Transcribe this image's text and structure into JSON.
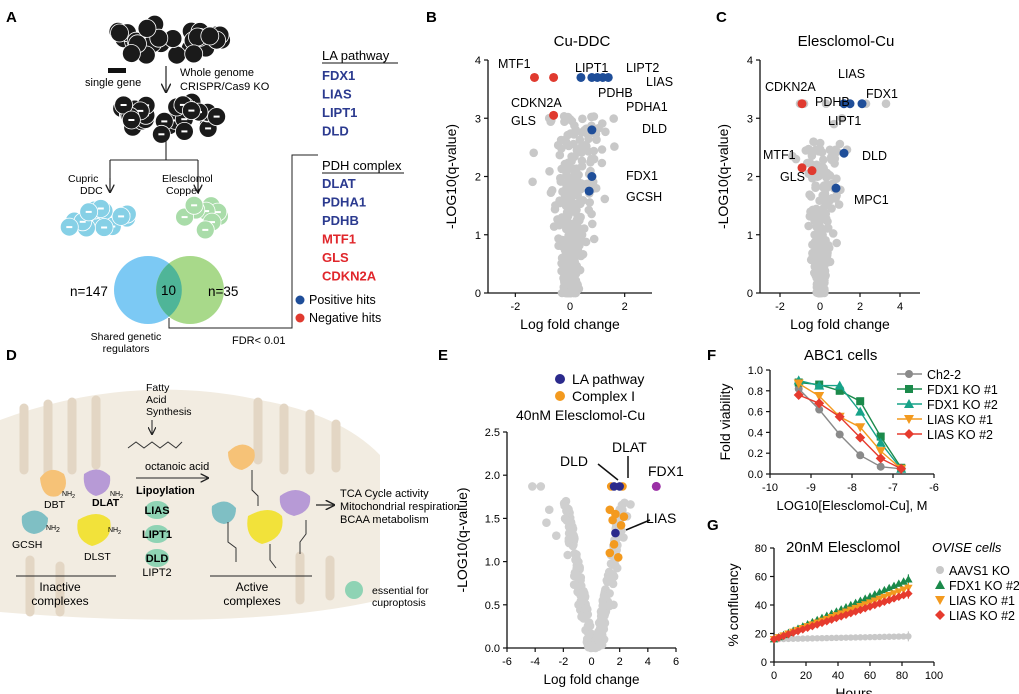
{
  "panels": {
    "A": "A",
    "B": "B",
    "C": "C",
    "D": "D",
    "E": "E",
    "F": "F",
    "G": "G"
  },
  "panelA": {
    "single_gene": "single gene",
    "screen": [
      "Whole genome",
      "CRISPR/Cas9 KO"
    ],
    "cupric": [
      "Cupric",
      "DDC"
    ],
    "elesclomol": [
      "Elesclomol",
      "Copper"
    ],
    "n_left": "n=147",
    "n_shared": "10",
    "n_right": "n=35",
    "shared": [
      "Shared genetic",
      "regulators"
    ],
    "fdr": "FDR< 0.01",
    "la_header": "LA pathway",
    "la_genes": [
      "FDX1",
      "LIAS",
      "LIPT1",
      "DLD"
    ],
    "pdh_header": "PDH complex",
    "pdh_pos": [
      "DLAT",
      "PDHA1",
      "PDHB"
    ],
    "pdh_neg": [
      "MTF1",
      "GLS",
      "CDKN2A"
    ],
    "legend_pos": "Positive hits",
    "legend_neg": "Negative hits",
    "colors": {
      "positive": "#1f4e99",
      "negative": "#e03a2f",
      "gene_blue": "#2b3a8f",
      "gene_red": "#e0262b"
    }
  },
  "panelD": {
    "fatty": [
      "Fatty",
      "Acid",
      "Synthesis"
    ],
    "octanoic": "octanoic acid",
    "lipoylation": "Lipoylation",
    "enzymes": [
      "LIAS",
      "LIPT1",
      "DLD",
      "LIPT2"
    ],
    "proteins": [
      "DBT",
      "DLAT",
      "GCSH",
      "DLST"
    ],
    "nh2": "NH",
    "nh2_sub": "2",
    "outcomes": [
      "TCA Cycle activity",
      "Mitochondrial respiration",
      "BCAA metabolism"
    ],
    "inactive": [
      "Inactive",
      "complexes"
    ],
    "active": [
      "Active",
      "complexes"
    ],
    "essential": [
      "essential for",
      "cuproptosis"
    ]
  },
  "chart_data": [
    {
      "id": "B",
      "type": "scatter",
      "title": "Cu-DDC",
      "xlabel": "Log fold change",
      "ylabel": "-LOG10(q-value)",
      "xlim": [
        -3,
        3
      ],
      "ylim": [
        0,
        4
      ],
      "xticks": [
        -2,
        0,
        2
      ],
      "yticks": [
        0,
        1,
        2,
        3,
        4
      ],
      "positive_hits": [
        {
          "label": "LIPT1",
          "x": 0.4,
          "y": 3.7
        },
        {
          "label": "LIPT2",
          "x": 1.2,
          "y": 3.7
        },
        {
          "label": "LIAS",
          "x": 1.4,
          "y": 3.7
        },
        {
          "label": "PDHB",
          "x": 0.8,
          "y": 3.7
        },
        {
          "label": "PDHA1",
          "x": 1.0,
          "y": 3.7
        },
        {
          "label": "DLD",
          "x": 0.8,
          "y": 2.8
        },
        {
          "label": "FDX1",
          "x": 0.8,
          "y": 2.0
        },
        {
          "label": "GCSH",
          "x": 0.7,
          "y": 1.75
        }
      ],
      "negative_hits": [
        {
          "label": "MTF1",
          "x": -1.3,
          "y": 3.7
        },
        {
          "label": "CDKN2A",
          "x": -0.6,
          "y": 3.7
        },
        {
          "label": "GLS",
          "x": -0.6,
          "y": 3.05
        }
      ]
    },
    {
      "id": "C",
      "type": "scatter",
      "title": "Elesclomol-Cu",
      "xlabel": "Log fold change",
      "ylabel": "-LOG10(q-value)",
      "xlim": [
        -3,
        5
      ],
      "ylim": [
        0,
        4
      ],
      "xticks": [
        -2,
        0,
        2,
        4
      ],
      "yticks": [
        0,
        1,
        2,
        3,
        4
      ],
      "positive_hits": [
        {
          "label": "PDHB",
          "x": 1.2,
          "y": 3.25
        },
        {
          "label": "LIAS",
          "x": 1.5,
          "y": 3.25
        },
        {
          "label": "FDX1",
          "x": 2.1,
          "y": 3.25
        },
        {
          "label": "DLD",
          "x": 1.2,
          "y": 2.4
        },
        {
          "label": "MPC1",
          "x": 0.8,
          "y": 1.8
        }
      ],
      "negative_hits": [
        {
          "label": "CDKN2A",
          "x": -0.9,
          "y": 3.25
        },
        {
          "label": "MTF1",
          "x": -0.9,
          "y": 2.15
        },
        {
          "label": "GLS",
          "x": -0.4,
          "y": 2.1
        }
      ],
      "other_labels": [
        {
          "label": "LIPT1",
          "x": 1.1,
          "y": 3.0
        }
      ]
    },
    {
      "id": "E",
      "type": "scatter",
      "title": "40nM Elesclomol-Cu",
      "xlabel": "Log fold change",
      "ylabel": "-LOG10(q-value)",
      "xlim": [
        -6,
        6
      ],
      "ylim": [
        0,
        2.5
      ],
      "xticks": [
        -6,
        -4,
        -2,
        0,
        2,
        4,
        6
      ],
      "yticks": [
        0.0,
        0.5,
        1.0,
        1.5,
        2.0,
        2.5
      ],
      "legend": [
        {
          "name": "LA  pathway",
          "color": "#2b2a8c"
        },
        {
          "name": "Complex I",
          "color": "#f39a1f"
        }
      ],
      "annotations": [
        {
          "label": "DLD",
          "x": 1.6,
          "y": 1.87
        },
        {
          "label": "DLAT",
          "x": 2.2,
          "y": 1.87
        },
        {
          "label": "FDX1",
          "x": 4.6,
          "y": 1.87
        },
        {
          "label": "LIAS",
          "x": 1.7,
          "y": 1.33
        }
      ]
    },
    {
      "id": "F",
      "type": "line",
      "title": "ABC1 cells",
      "xlabel": "LOG10[Elesclomol-Cu], M",
      "ylabel": "Fold viability",
      "xlim": [
        -10,
        -6
      ],
      "ylim": [
        0,
        1.0
      ],
      "xticks": [
        -10,
        -9,
        -8,
        -7,
        -6
      ],
      "yticks": [
        0.0,
        0.2,
        0.4,
        0.6,
        0.8,
        1.0
      ],
      "x": [
        -9.3,
        -8.8,
        -8.3,
        -7.8,
        -7.3,
        -6.8
      ],
      "series": [
        {
          "name": "Ch2-2",
          "color": "#8a8a8a",
          "marker": "circle",
          "values": [
            0.82,
            0.62,
            0.38,
            0.18,
            0.07,
            0.05
          ]
        },
        {
          "name": "FDX1 KO #1",
          "color": "#1b8a4b",
          "marker": "square",
          "values": [
            0.88,
            0.86,
            0.8,
            0.7,
            0.36,
            0.06
          ]
        },
        {
          "name": "FDX1 KO #2",
          "color": "#17a389",
          "marker": "triangle-up",
          "values": [
            0.9,
            0.85,
            0.85,
            0.6,
            0.3,
            0.05
          ]
        },
        {
          "name": "LIAS KO #1",
          "color": "#f39a1f",
          "marker": "triangle-down",
          "values": [
            0.87,
            0.75,
            0.55,
            0.45,
            0.22,
            0.05
          ]
        },
        {
          "name": "LIAS KO #2",
          "color": "#e63b2e",
          "marker": "diamond",
          "values": [
            0.76,
            0.68,
            0.55,
            0.35,
            0.15,
            0.05
          ]
        }
      ]
    },
    {
      "id": "G",
      "type": "line",
      "title": "20nM Elesclomol",
      "subtitle": "OVISE cells",
      "xlabel": "Hours",
      "ylabel": "% confluency",
      "xlim": [
        0,
        100
      ],
      "ylim": [
        0,
        80
      ],
      "xticks": [
        0,
        20,
        40,
        60,
        80,
        100
      ],
      "yticks": [
        0,
        20,
        40,
        60,
        80
      ],
      "series": [
        {
          "name": "AAVS1 KO",
          "color": "#c8c8c8",
          "marker": "circle",
          "start": 16,
          "end": 18
        },
        {
          "name": "FDX1 KO #2",
          "color": "#1b8a4b",
          "marker": "triangle-up",
          "start": 16,
          "end": 58
        },
        {
          "name": "LIAS KO #1",
          "color": "#f39a1f",
          "marker": "triangle-down",
          "start": 16,
          "end": 52
        },
        {
          "name": "LIAS KO #2",
          "color": "#e63b2e",
          "marker": "diamond",
          "start": 16,
          "end": 48
        }
      ]
    }
  ]
}
